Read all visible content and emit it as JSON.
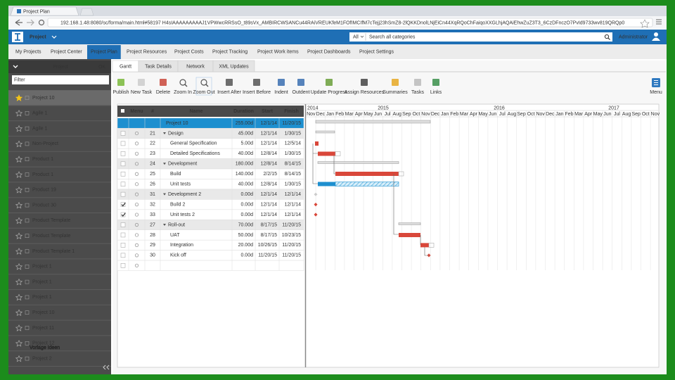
{
  "browser": {
    "tab_title": "Project Plan",
    "url": "192.168.1.48:8080/sc/forma/main.html#58197 H4sIAAAAAAAAAJ1VPWwcRRSsO_t89sVx_AMBIRCWSANCu44RAiVREUKfeM1FOfIMCIfM7cTejj23hSmZ8-2lQKKDnolLNjEiCn44XqRQoChFaiqoXXGLhjAQAiEhwZuZ3T3_6CzDFnczO7PvId9733wv819QRQp0"
  },
  "header": {
    "app": "Project",
    "search_scope": "All",
    "search_placeholder": "Search all categories",
    "user": "Administrator"
  },
  "nav": {
    "items": [
      "My Projects",
      "Project Center",
      "Project Plan",
      "Project Resources",
      "Project Costs",
      "Project Tracking",
      "Project Work items",
      "Project Dashboards",
      "Project Settings"
    ],
    "active": 2
  },
  "sidebar": {
    "title": "Project",
    "ok": "OK",
    "filter_placeholder": "Filter",
    "items": [
      "Project 10",
      "Agile 1",
      "Agile 1",
      "Non-Project",
      "Product 1",
      "Product 1",
      "Product 19",
      "Product 30",
      "Product Template",
      "Product Template",
      "Product Template 1",
      "Project 1",
      "Project 1",
      "Project 1",
      "Project 10",
      "Project 11",
      "Project 12",
      "Project 2"
    ],
    "selected": 0
  },
  "tabs": {
    "items": [
      "Gantt",
      "Task Details",
      "Network",
      "XML Updates"
    ],
    "active": 0
  },
  "toolbar": [
    "Publish",
    "New Task",
    "Delete",
    "Zoom In",
    "Zoom Out",
    "Insert After",
    "Insert Before",
    "Indent",
    "Outdent",
    "Update Progress",
    "Assign Resources",
    "Summaries",
    "Tasks",
    "Links",
    "Menu"
  ],
  "grid": {
    "headers": [
      "Menu",
      "#",
      "Name",
      "Duration",
      "Start",
      "Finish"
    ],
    "rows": [
      {
        "name": "Project 10",
        "duration": "255.00d",
        "start": "12/1/14",
        "finish": "11/20/15",
        "level": 0,
        "summary": true,
        "selected": true
      },
      {
        "id": "21",
        "name": "Design",
        "duration": "45.00d",
        "start": "12/1/14",
        "finish": "1/30/15",
        "level": 1,
        "summary": true
      },
      {
        "id": "22",
        "name": "General Specification",
        "duration": "5.00d",
        "start": "12/1/14",
        "finish": "12/5/14",
        "level": 2
      },
      {
        "id": "23",
        "name": "Detailed Specifications",
        "duration": "40.00d",
        "start": "12/8/14",
        "finish": "1/30/15",
        "level": 2
      },
      {
        "id": "24",
        "name": "Development",
        "duration": "180.00d",
        "start": "12/8/14",
        "finish": "8/14/15",
        "level": 1,
        "summary": true
      },
      {
        "id": "25",
        "name": "Build",
        "duration": "140.00d",
        "start": "2/2/15",
        "finish": "8/14/15",
        "level": 2
      },
      {
        "id": "26",
        "name": "Unit tests",
        "duration": "40.00d",
        "start": "12/8/14",
        "finish": "1/30/15",
        "level": 2
      },
      {
        "id": "31",
        "name": "Development 2",
        "duration": "0.00d",
        "start": "12/1/14",
        "finish": "12/1/14",
        "level": 1,
        "summary": true
      },
      {
        "id": "32",
        "name": "Build 2",
        "duration": "0.00d",
        "start": "12/1/14",
        "finish": "12/1/14",
        "level": 2,
        "checked": true
      },
      {
        "id": "33",
        "name": "Unit tests 2",
        "duration": "0.00d",
        "start": "12/1/14",
        "finish": "12/1/14",
        "level": 2,
        "checked": true
      },
      {
        "id": "27",
        "name": "Roll-out",
        "duration": "70.00d",
        "start": "8/17/15",
        "finish": "11/20/15",
        "level": 1,
        "summary": true
      },
      {
        "id": "28",
        "name": "UAT",
        "duration": "50.00d",
        "start": "8/17/15",
        "finish": "10/23/15",
        "level": 2
      },
      {
        "id": "29",
        "name": "Integration",
        "duration": "20.00d",
        "start": "10/26/15",
        "finish": "11/20/15",
        "level": 2
      },
      {
        "id": "30",
        "name": "Kick off",
        "duration": "0.00d",
        "start": "11/20/15",
        "finish": "11/20/15",
        "level": 2
      }
    ]
  },
  "timeline": {
    "years": [
      "2014",
      "2015",
      "2016",
      "2017"
    ],
    "months": [
      "Nov",
      "Dec",
      "Jan",
      "Feb",
      "Mar",
      "Apr",
      "May",
      "Jun",
      "Jul",
      "Aug",
      "Sep",
      "Oct",
      "Nov",
      "Dec",
      "Jan",
      "Feb",
      "Mar",
      "Apr",
      "May",
      "Jun",
      "Jul",
      "Aug",
      "Sep",
      "Oct",
      "Nov",
      "Dec",
      "Jan",
      "Feb",
      "Mar",
      "Apr",
      "May",
      "Jun",
      "Jul",
      "Aug",
      "Sep",
      "Oct",
      "Nov"
    ]
  },
  "watermark": "Vorlage Ideen"
}
